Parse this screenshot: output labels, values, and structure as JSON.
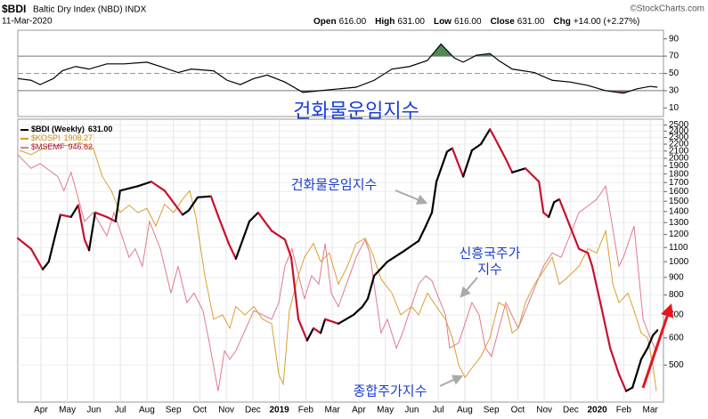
{
  "header": {
    "symbol": "$BDI",
    "name": "Baltic Dry Index (NBD) INDX",
    "date": "11-Mar-2020",
    "credit": "©StockCharts.com",
    "quote": [
      {
        "label": "Open",
        "value": "616.00"
      },
      {
        "label": "High",
        "value": "631.00"
      },
      {
        "label": "Low",
        "value": "616.00"
      },
      {
        "label": "Close",
        "value": "631.00"
      },
      {
        "label": "Chg",
        "value": "+14.00 (+2.27%)"
      }
    ]
  },
  "chart_data": [
    {
      "type": "line",
      "xlim": [
        0.13,
        24.5
      ],
      "ylim": [
        0,
        100
      ],
      "yticks": [
        10,
        30,
        50,
        70,
        90
      ],
      "upper_band": 70,
      "lower_band": 30,
      "midline": 50,
      "upper_fill": "#4f8a55",
      "lower_fill": "#9a5a5a",
      "annotations": [
        "건화물운임지수"
      ],
      "series": [
        {
          "color": "#000000",
          "x": [
            0.13,
            0.63,
            0.97,
            1.47,
            1.81,
            2.31,
            2.82,
            3.49,
            4.16,
            5.0,
            5.51,
            6.18,
            6.68,
            7.52,
            8.03,
            8.53,
            9.04,
            9.54,
            10.21,
            10.89,
            11.56,
            12.23,
            12.9,
            13.58,
            14.25,
            14.92,
            15.59,
            16.1,
            16.6,
            16.94,
            17.44,
            17.95,
            18.28,
            18.79,
            19.63,
            20.3,
            20.97,
            21.65,
            22.32,
            22.99,
            23.49,
            24.0,
            24.27
          ],
          "values": [
            44,
            42,
            37,
            44,
            53,
            58,
            55,
            61,
            61,
            63,
            58,
            51,
            55,
            53,
            42,
            37,
            44,
            48,
            40,
            28,
            30,
            32,
            34,
            42,
            55,
            58,
            65,
            84,
            68,
            63,
            71,
            73,
            65,
            55,
            51,
            42,
            40,
            36,
            30,
            27,
            32,
            35,
            34
          ]
        }
      ]
    },
    {
      "type": "line",
      "log_scale": true,
      "grid": true,
      "xlim": [
        0.13,
        24.5
      ],
      "ylim": [
        390,
        2600
      ],
      "yticks": [
        500,
        600,
        700,
        800,
        900,
        1000,
        1100,
        1200,
        1300,
        1400,
        1500,
        1600,
        1700,
        1800,
        1900,
        2000,
        2100,
        2200,
        2300,
        2400,
        2500
      ],
      "xticks": [
        {
          "value": 1,
          "label": "Apr"
        },
        {
          "value": 2,
          "label": "May"
        },
        {
          "value": 3,
          "label": "Jun"
        },
        {
          "value": 4,
          "label": "Jul"
        },
        {
          "value": 5,
          "label": "Aug"
        },
        {
          "value": 6,
          "label": "Sep"
        },
        {
          "value": 7,
          "label": "Oct"
        },
        {
          "value": 8,
          "label": "Nov"
        },
        {
          "value": 9,
          "label": "Dec"
        },
        {
          "value": 10,
          "label": "2019"
        },
        {
          "value": 11,
          "label": "Feb"
        },
        {
          "value": 12,
          "label": "Mar"
        },
        {
          "value": 13,
          "label": "Apr"
        },
        {
          "value": 14,
          "label": "May"
        },
        {
          "value": 15,
          "label": "Jun"
        },
        {
          "value": 16,
          "label": "Jul"
        },
        {
          "value": 17,
          "label": "Aug"
        },
        {
          "value": 18,
          "label": "Sep"
        },
        {
          "value": 19,
          "label": "Oct"
        },
        {
          "value": 20,
          "label": "Nov"
        },
        {
          "value": 21,
          "label": "Dec"
        },
        {
          "value": 22,
          "label": "2020"
        },
        {
          "value": 23,
          "label": "Feb"
        },
        {
          "value": 24,
          "label": "Mar"
        }
      ],
      "annotations": [
        "건화물운임지수",
        "신흥국주가",
        "지수",
        "종합주가지수"
      ],
      "series": [
        {
          "name": "$MSEMF",
          "last_label": "946.62",
          "color": "#e07a8c",
          "label_color": "#a8102e",
          "x": [
            0.13,
            0.63,
            0.97,
            1.64,
            1.87,
            2.14,
            2.65,
            2.98,
            3.49,
            3.76,
            4.33,
            4.56,
            4.83,
            5.1,
            5.51,
            5.91,
            6.18,
            6.51,
            6.78,
            7.12,
            7.36,
            7.69,
            7.93,
            8.13,
            8.36,
            9.04,
            9.71,
            9.98,
            10.21,
            10.48,
            10.95,
            11.22,
            11.49,
            11.73,
            11.96,
            12.23,
            12.9,
            13.24,
            13.41,
            13.84,
            14.08,
            14.42,
            14.65,
            15.26,
            15.53,
            15.76,
            16.27,
            16.43,
            16.77,
            17.27,
            17.54,
            17.78,
            18.01,
            18.55,
            19.02,
            19.97,
            20.3,
            20.64,
            21.31,
            21.98,
            22.32,
            22.82,
            22.99,
            23.39,
            23.73,
            24.0,
            24.23
          ],
          "values": [
            2050,
            1870,
            1930,
            1770,
            1610,
            1820,
            1310,
            1390,
            1190,
            1390,
            1030,
            1090,
            970,
            1310,
            1090,
            810,
            970,
            760,
            810,
            720,
            580,
            420,
            550,
            520,
            550,
            720,
            680,
            760,
            970,
            1090,
            780,
            910,
            860,
            1130,
            810,
            740,
            1030,
            1160,
            1060,
            620,
            680,
            560,
            620,
            860,
            910,
            880,
            700,
            560,
            580,
            760,
            700,
            560,
            530,
            760,
            640,
            970,
            1060,
            1030,
            1390,
            1520,
            1660,
            970,
            1030,
            1270,
            680,
            600,
            550
          ]
        },
        {
          "name": "$KOSPI",
          "last_label": "1908.27",
          "color": "#d9a030",
          "label_color": "#c98a10",
          "x": [
            0.19,
            0.63,
            1.3,
            1.98,
            2.48,
            2.98,
            3.32,
            3.66,
            3.99,
            4.33,
            4.67,
            5.0,
            5.34,
            5.67,
            6.01,
            6.35,
            6.62,
            6.85,
            7.19,
            7.52,
            7.86,
            8.13,
            8.36,
            8.7,
            9.04,
            9.37,
            9.71,
            9.98,
            10.15,
            10.38,
            10.72,
            10.95,
            11.29,
            11.56,
            11.89,
            12.23,
            12.57,
            12.9,
            13.24,
            13.51,
            13.84,
            14.25,
            14.58,
            14.99,
            15.26,
            15.59,
            15.93,
            16.27,
            16.53,
            16.77,
            17.01,
            17.27,
            17.61,
            17.95,
            18.28,
            18.55,
            18.79,
            19.02,
            19.29,
            19.63,
            19.97,
            20.3,
            20.57,
            20.81,
            21.31,
            21.65,
            21.98,
            22.32,
            22.59,
            22.82,
            23.16,
            23.39,
            23.66,
            23.9,
            24.1,
            24.23
          ],
          "values": [
            2110,
            2050,
            2180,
            2180,
            2220,
            2140,
            1770,
            1610,
            1390,
            1460,
            1390,
            1430,
            1270,
            1470,
            1390,
            1520,
            1610,
            1350,
            910,
            680,
            700,
            640,
            740,
            700,
            740,
            680,
            660,
            470,
            440,
            720,
            910,
            1030,
            1130,
            1000,
            1060,
            860,
            970,
            1130,
            1170,
            1060,
            890,
            810,
            700,
            740,
            700,
            810,
            740,
            680,
            600,
            500,
            460,
            490,
            530,
            600,
            760,
            740,
            620,
            640,
            760,
            860,
            940,
            1030,
            860,
            890,
            970,
            1090,
            1060,
            1230,
            860,
            760,
            810,
            720,
            620,
            600,
            500,
            420
          ]
        },
        {
          "name": "$BDI (Weekly)",
          "last_label": "631.00",
          "color": "#000000",
          "down_color": "#c8102e",
          "label_color": "#000000",
          "x": [
            0.13,
            0.63,
            1.07,
            1.3,
            1.54,
            1.74,
            2.14,
            2.41,
            2.65,
            2.82,
            3.05,
            3.49,
            3.82,
            3.99,
            4.67,
            5.17,
            5.67,
            6.35,
            6.58,
            6.92,
            7.42,
            7.69,
            8.09,
            8.36,
            8.87,
            9.2,
            9.71,
            10.21,
            10.45,
            10.72,
            11.05,
            11.29,
            11.56,
            11.73,
            12.23,
            12.8,
            13.14,
            13.34,
            13.58,
            14.08,
            14.75,
            15.26,
            15.53,
            15.76,
            15.93,
            16.33,
            16.53,
            16.94,
            17.27,
            17.61,
            17.95,
            18.11,
            18.55,
            18.79,
            19.29,
            19.8,
            19.97,
            20.17,
            20.37,
            20.57,
            20.97,
            21.31,
            21.65,
            21.81,
            22.15,
            22.49,
            22.82,
            23.09,
            23.33,
            23.66,
            23.9,
            24.1,
            24.27
          ],
          "values": [
            1170,
            1090,
            950,
            1000,
            1190,
            1370,
            1350,
            1460,
            1160,
            1080,
            1390,
            1350,
            1310,
            1610,
            1660,
            1710,
            1610,
            1370,
            1410,
            1540,
            1550,
            1360,
            1130,
            1020,
            1310,
            1390,
            1230,
            1160,
            1030,
            680,
            590,
            640,
            620,
            680,
            660,
            700,
            740,
            780,
            910,
            1000,
            1080,
            1150,
            1270,
            1390,
            1710,
            2090,
            2140,
            1770,
            2110,
            2200,
            2430,
            2310,
            1990,
            1820,
            1870,
            1710,
            1390,
            1350,
            1490,
            1520,
            1270,
            1090,
            1060,
            970,
            740,
            560,
            470,
            420,
            430,
            520,
            560,
            610,
            631
          ]
        }
      ]
    }
  ]
}
